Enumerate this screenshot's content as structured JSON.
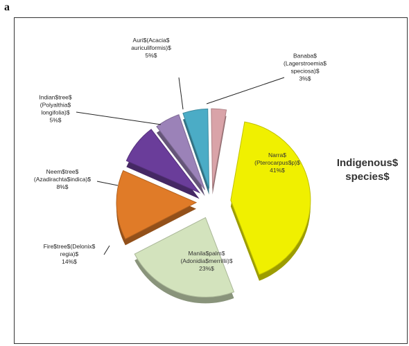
{
  "panel_label": "a",
  "chart_data": {
    "type": "pie",
    "title": "",
    "side_label": [
      "Indigenous$",
      "species$"
    ],
    "slices": [
      {
        "name": "Narra$ (Pterocarpus$p)$",
        "lines": [
          "Narra$",
          "(Pterocarpus$p)$",
          "41%$"
        ],
        "value": 41,
        "color": "#f0f000"
      },
      {
        "name": "Manila$palm$ (Adonidia$merrillii)$",
        "lines": [
          "Manila$palm$",
          "(Adonidia$merrillii)$",
          "23%$"
        ],
        "value": 23,
        "color": "#d3e3bd"
      },
      {
        "name": "Fire$tree$(Delonix$ regia)$",
        "lines": [
          "Fire$tree$(Delonix$",
          "regia)$",
          "14%$"
        ],
        "value": 14,
        "color": "#e07b28"
      },
      {
        "name": "Neem$tree$ (Azadirachta$indica)$",
        "lines": [
          "Neem$tree$",
          "(Azadirachta$indica)$",
          "8%$"
        ],
        "value": 8,
        "color": "#6a3d9a"
      },
      {
        "name": "Indian$tree$ (Polyalthia$ longifolia)$",
        "lines": [
          "Indian$tree$",
          "(Polyalthia$",
          "longifolia)$",
          "5%$"
        ],
        "value": 5,
        "color": "#9b82b8"
      },
      {
        "name": "Auri$(Acacia$ auriculiformis)$",
        "lines": [
          "Auri$(Acacia$",
          "auriculiformis)$",
          "5%$"
        ],
        "value": 5,
        "color": "#4bacc6"
      },
      {
        "name": "Banaba$ (Lagerstroemia$ speciosa)$",
        "lines": [
          "Banaba$",
          "(Lagerstroemia$",
          "speciosa)$",
          "3%$"
        ],
        "value": 3,
        "color": "#d9a3a8"
      }
    ]
  }
}
